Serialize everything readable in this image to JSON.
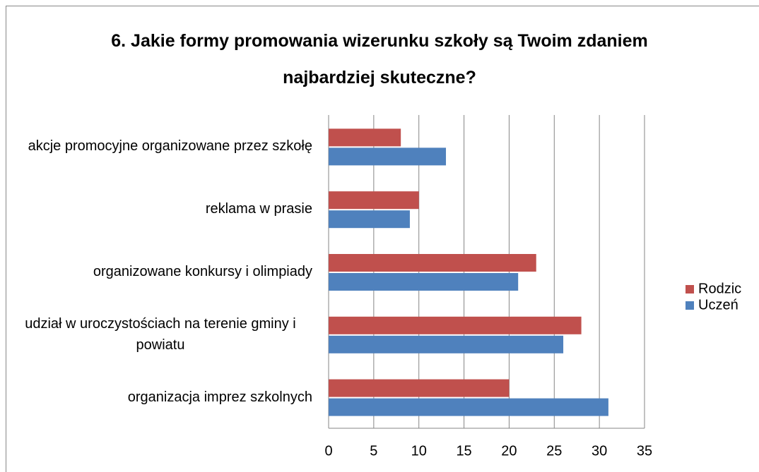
{
  "chart_data": {
    "type": "bar",
    "orientation": "horizontal",
    "title": [
      "6. Jakie formy promowania wizerunku szkoły są Twoim zdaniem",
      "najbardziej skuteczne?"
    ],
    "categories": [
      "akcje promocyjne organizowane przez szkołę",
      "reklama w prasie",
      "organizowane konkursy i olimpiady",
      "udział w uroczystościach na terenie gminy i powiatu",
      "organizacja imprez szkolnych"
    ],
    "series": [
      {
        "name": "Rodzic",
        "color": "#c0504d",
        "values": [
          8,
          10,
          23,
          28,
          20
        ]
      },
      {
        "name": "Uczeń",
        "color": "#4f81bd",
        "values": [
          13,
          9,
          21,
          26,
          31
        ]
      }
    ],
    "xlim": [
      0,
      35
    ],
    "xticks": [
      0,
      5,
      10,
      15,
      20,
      25,
      30,
      35
    ],
    "grid": true,
    "legend": "right"
  }
}
